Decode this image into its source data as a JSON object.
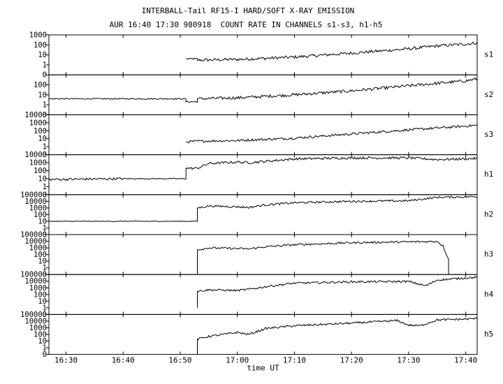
{
  "chart_data": {
    "type": "line",
    "title": "INTERBALL-Tail RF15-I HARD/SOFT X-RAY EMISSION",
    "subtitle": "AUR 16:40 17:30 980918  COUNT RATE IN CHANNELS s1-s3, h1-h5",
    "xlabel": "time UT",
    "xlim": [
      "16:27",
      "17:42"
    ],
    "x_ticks": [
      "16:30",
      "16:40",
      "16:50",
      "17:00",
      "17:10",
      "17:20",
      "17:30",
      "17:40"
    ],
    "grid": false,
    "yscale": "log",
    "panels": [
      {
        "name": "s1",
        "ylim": [
          0.1,
          1000
        ],
        "y_ticks": [
          "1000",
          "100",
          "10",
          "1",
          "0"
        ],
        "series": [
          {
            "x": [
              "16:51",
              "16:53",
              "16:53",
              "17:00",
              "17:10",
              "17:20",
              "17:30",
              "17:35",
              "17:40",
              "17:42"
            ],
            "y": [
              4,
              4,
              3,
              3.5,
              6,
              15,
              40,
              80,
              120,
              160
            ]
          }
        ]
      },
      {
        "name": "s2",
        "ylim": [
          0.1,
          1000
        ],
        "y_ticks": [
          "100",
          "10",
          "1",
          "0"
        ],
        "series": [
          {
            "x": [
              "16:27",
              "16:40",
              "16:51",
              "16:51",
              "16:53",
              "16:53",
              "17:00",
              "17:10",
              "17:20",
              "17:30",
              "17:40",
              "17:42"
            ],
            "y": [
              4,
              4,
              4,
              2,
              2,
              4,
              5,
              10,
              25,
              80,
              250,
              400
            ]
          }
        ]
      },
      {
        "name": "s3",
        "ylim": [
          0.1,
          10000
        ],
        "y_ticks": [
          "10000",
          "1000",
          "100",
          "10",
          "1",
          "0"
        ],
        "series": [
          {
            "x": [
              "16:51",
              "16:53",
              "17:00",
              "17:10",
              "17:20",
              "17:30",
              "17:40",
              "17:42"
            ],
            "y": [
              4,
              5,
              6,
              12,
              40,
              130,
              380,
              500
            ]
          }
        ]
      },
      {
        "name": "h1",
        "ylim": [
          0.1,
          10000
        ],
        "y_ticks": [
          "10000",
          "1000",
          "100",
          "10",
          "1",
          "0"
        ],
        "series": [
          {
            "x": [
              "16:27",
              "16:40",
              "16:51",
              "16:51",
              "16:53",
              "16:55",
              "17:00",
              "17:02",
              "17:05",
              "17:10",
              "17:20",
              "17:30",
              "17:35",
              "17:40",
              "17:42"
            ],
            "y": [
              8,
              10,
              10,
              200,
              200,
              800,
              1200,
              1000,
              1500,
              3000,
              4000,
              4000,
              2500,
              3000,
              3500
            ]
          }
        ]
      },
      {
        "name": "h2",
        "ylim": [
          0.1,
          100000
        ],
        "y_ticks": [
          "100000",
          "10000",
          "1000",
          "100",
          "10",
          "1",
          "0"
        ],
        "series": [
          {
            "x": [
              "16:27",
              "16:53",
              "16:53",
              "16:55",
              "17:00",
              "17:02",
              "17:05",
              "17:10",
              "17:20",
              "17:30",
              "17:35",
              "17:42"
            ],
            "y": [
              10,
              10,
              1000,
              2000,
              1500,
              1200,
              3000,
              6000,
              10000,
              12000,
              40000,
              50000
            ]
          }
        ]
      },
      {
        "name": "h3",
        "ylim": [
          0.1,
          100000
        ],
        "y_ticks": [
          "100000",
          "10000",
          "1000",
          "100",
          "10",
          "1",
          "0"
        ],
        "series": [
          {
            "x": [
              "16:53",
              "16:53",
              "16:55",
              "17:00",
              "17:02",
              "17:05",
              "17:10",
              "17:20",
              "17:30",
              "17:34",
              "17:35",
              "17:36",
              "17:37",
              "17:37"
            ],
            "y": [
              0.1,
              500,
              1000,
              800,
              700,
              1500,
              3000,
              6000,
              8000,
              9000,
              10000,
              2000,
              20,
              0.1
            ]
          }
        ]
      },
      {
        "name": "h4",
        "ylim": [
          0.1,
          100000
        ],
        "y_ticks": [
          "100000",
          "10000",
          "1000",
          "100",
          "10",
          "1",
          "0"
        ],
        "series": [
          {
            "x": [
              "16:53",
              "16:53",
              "16:55",
              "17:00",
              "17:02",
              "17:05",
              "17:10",
              "17:20",
              "17:30",
              "17:33",
              "17:35",
              "17:40",
              "17:42"
            ],
            "y": [
              1,
              300,
              500,
              400,
              600,
              1500,
              5000,
              8000,
              9000,
              2000,
              15000,
              30000,
              40000
            ]
          }
        ]
      },
      {
        "name": "h5",
        "ylim": [
          0.1,
          100000
        ],
        "y_ticks": [
          "100000",
          "10000",
          "1000",
          "100",
          "10",
          "1",
          "0"
        ],
        "series": [
          {
            "x": [
              "16:53",
              "16:53",
              "16:55",
              "17:00",
              "17:02",
              "17:05",
              "17:10",
              "17:20",
              "17:28",
              "17:30",
              "17:32",
              "17:35",
              "17:40",
              "17:42"
            ],
            "y": [
              0.1,
              20,
              50,
              200,
              100,
              800,
              2000,
              5000,
              12000,
              2500,
              2000,
              15000,
              20000,
              25000
            ]
          }
        ]
      }
    ]
  }
}
